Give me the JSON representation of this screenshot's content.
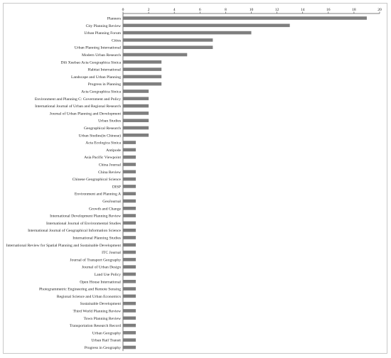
{
  "chart_data": {
    "type": "bar",
    "orientation": "horizontal",
    "title": "",
    "xlabel": "",
    "ylabel": "",
    "xlim": [
      0,
      20
    ],
    "x_ticks": [
      0,
      2,
      4,
      6,
      8,
      10,
      12,
      14,
      16,
      18,
      20
    ],
    "x_axis_position": "top",
    "grid": false,
    "legend": "none",
    "bar_color": "#7f7f7f",
    "categories": [
      "Planners",
      "City Planning Review",
      "Urban Planning Forum",
      "Cities",
      "Urban Planning International",
      "Modern Urban Research",
      "Dili Xuebao Acta Geographica Sinica",
      "Habitat International",
      "Landscape and Urban Planning",
      "Progress in Planning",
      "Acta Geographica Sinica",
      "Environment and Planning C: Government and Policy",
      "International Journal of Urban and Regional Research",
      "Journal of Urban Planning and Development",
      "Urban Studies",
      "Geographical Research",
      "Urban Studies(in Chinese)",
      "Acta Ecologica Sinica",
      "Antipode",
      "Asia Pacific Viewpoint",
      "China Journal",
      "China Review",
      "Chinese Geographical Science",
      "DISP",
      "Environment and Planning A",
      "GeoJournal",
      "Growth and Change",
      "International Development Planning Review",
      "International Journal of Environmental Studies",
      "International Journal of Geographical Information Science",
      "International Planning Studies",
      "International Review for Spatial Planning and Sustainable Development",
      "ITC Journal",
      "Journal of Transport Geography",
      "Journal of Urban Design",
      "Land Use Policy",
      "Open House International",
      "Photogrammetric Engineering and Remote Sensing",
      "Regional Science and Urban Economics",
      "Sustainable Development",
      "Third World Planning Review",
      "Town Planning Review",
      "Transportation Research Record",
      "Urban Geography",
      "Urban Rail Transit",
      "Progress in Geography"
    ],
    "values": [
      19,
      13,
      10,
      7,
      7,
      5,
      3,
      3,
      3,
      3,
      2,
      2,
      2,
      2,
      2,
      2,
      2,
      1,
      1,
      1,
      1,
      1,
      1,
      1,
      1,
      1,
      1,
      1,
      1,
      1,
      1,
      1,
      1,
      1,
      1,
      1,
      1,
      1,
      1,
      1,
      1,
      1,
      1,
      1,
      1,
      1
    ]
  }
}
